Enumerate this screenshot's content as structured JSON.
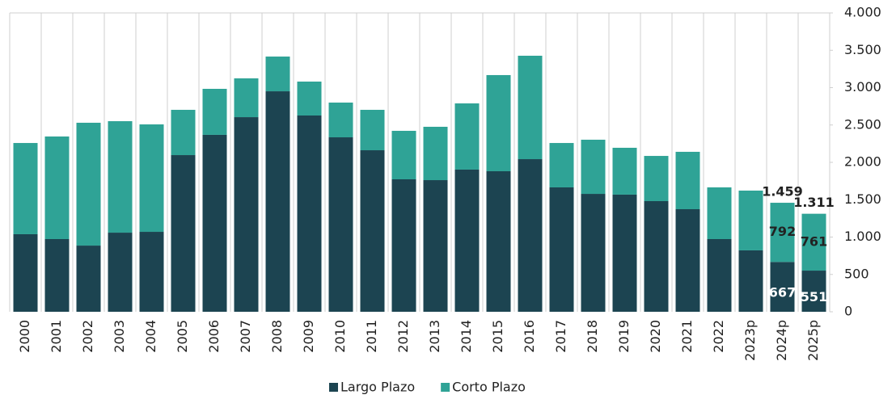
{
  "chart_data": {
    "type": "stacked_bar",
    "categories": [
      "2000",
      "2001",
      "2002",
      "2003",
      "2004",
      "2005",
      "2006",
      "2007",
      "2008",
      "2009",
      "2010",
      "2011",
      "2012",
      "2013",
      "2014",
      "2015",
      "2016",
      "2017",
      "2018",
      "2019",
      "2020",
      "2021",
      "2022",
      "2023p",
      "2024p",
      "2025p"
    ],
    "series": [
      {
        "name": "Largo Plazo",
        "color": "#1c4451",
        "values": [
          1038,
          973,
          886,
          1059,
          1070,
          2097,
          2368,
          2605,
          2951,
          2627,
          2335,
          2162,
          1773,
          1762,
          1903,
          1881,
          2043,
          1665,
          1578,
          1568,
          1481,
          1373,
          973,
          822,
          667,
          551
        ],
        "value_labels": [
          null,
          null,
          null,
          null,
          null,
          null,
          null,
          null,
          null,
          null,
          null,
          null,
          null,
          null,
          null,
          null,
          null,
          null,
          null,
          null,
          null,
          null,
          null,
          null,
          "667",
          "551"
        ]
      },
      {
        "name": "Corto Plazo",
        "color": "#2fa396",
        "values": [
          1221,
          1373,
          1644,
          1492,
          1438,
          606,
          616,
          519,
          465,
          454,
          465,
          541,
          649,
          714,
          886,
          1287,
          1384,
          594,
          725,
          627,
          605,
          768,
          692,
          800,
          792,
          761
        ],
        "value_labels": [
          null,
          null,
          null,
          null,
          null,
          null,
          null,
          null,
          null,
          null,
          null,
          null,
          null,
          null,
          null,
          null,
          null,
          null,
          null,
          null,
          null,
          null,
          null,
          null,
          "792",
          "761"
        ]
      }
    ],
    "totals": {
      "values": [
        null,
        null,
        null,
        null,
        null,
        null,
        null,
        null,
        null,
        null,
        null,
        null,
        null,
        null,
        null,
        null,
        null,
        null,
        null,
        null,
        null,
        null,
        null,
        null,
        1459,
        1311
      ],
      "value_labels": [
        null,
        null,
        null,
        null,
        null,
        null,
        null,
        null,
        null,
        null,
        null,
        null,
        null,
        null,
        null,
        null,
        null,
        null,
        null,
        null,
        null,
        null,
        null,
        null,
        "1.459",
        "1.311"
      ]
    },
    "ylim": [
      0,
      4000
    ],
    "yticks": [
      0,
      500,
      {
        "value": 1000,
        "label": "1.000"
      },
      {
        "value": 1500,
        "label": "1.500"
      },
      {
        "value": 2000,
        "label": "2.000"
      },
      {
        "value": 2500,
        "label": "2.500"
      },
      {
        "value": 3000,
        "label": "3.000"
      },
      {
        "value": 3500,
        "label": "3.500"
      },
      {
        "value": 4000,
        "label": "4.000"
      }
    ],
    "grid": true,
    "legend": "bottom"
  }
}
